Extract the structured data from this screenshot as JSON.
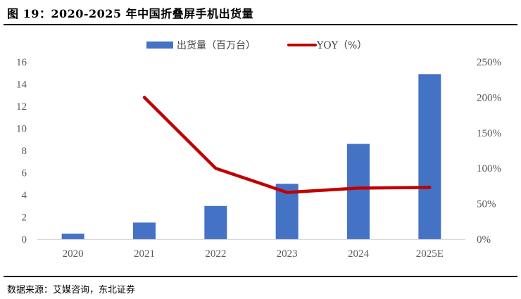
{
  "figure": {
    "title": "图 19：2020-2025 年中国折叠屏手机出货量",
    "source": "数据来源：艾媒咨询，东北证券"
  },
  "colors": {
    "bar": "#4472C4",
    "line": "#C00000",
    "axis": "#D9D9D9",
    "tick_text": "#595959"
  },
  "chart_data": {
    "type": "bar+line",
    "title": "2020-2025 年中国折叠屏手机出货量",
    "categories": [
      "2020",
      "2021",
      "2022",
      "2023",
      "2024",
      "2025E"
    ],
    "series": [
      {
        "name": "出货量（百万台）",
        "type": "bar",
        "axis": "left",
        "values": [
          0.5,
          1.5,
          3.0,
          5.0,
          8.6,
          14.9
        ]
      },
      {
        "name": "YOY（%）",
        "type": "line",
        "axis": "right",
        "values": [
          null,
          200,
          100,
          66,
          72,
          73
        ]
      }
    ],
    "left_axis": {
      "ylim": [
        0,
        16
      ],
      "ticks": [
        "0",
        "2",
        "4",
        "6",
        "8",
        "10",
        "12",
        "14",
        "16"
      ]
    },
    "right_axis": {
      "ylim": [
        0,
        250
      ],
      "ticks": [
        "0%",
        "50%",
        "100%",
        "150%",
        "200%",
        "250%"
      ]
    },
    "legend": {
      "position": "top",
      "entries": [
        "出货量（百万台）",
        "YOY（%）"
      ]
    },
    "grid": false
  }
}
